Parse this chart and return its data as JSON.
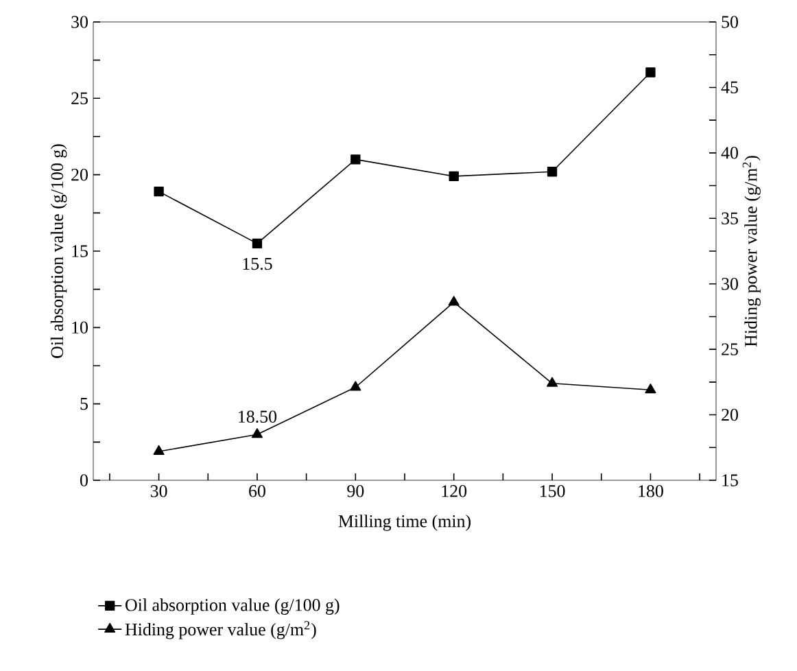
{
  "chart_data": {
    "type": "line",
    "xlabel": "Milling time (min)",
    "ylabel": "Oil absorption value (g/100 g)",
    "y2label": "Hiding power value (g/m$^{2}$)",
    "x": [
      30,
      60,
      90,
      120,
      150,
      180
    ],
    "series": [
      {
        "name": "Oil absorption value (g/100 g)",
        "color": "#000000",
        "marker": "square",
        "values": [
          18.9,
          15.5,
          21.0,
          19.9,
          20.2,
          26.7
        ],
        "value_labels": [
          null,
          "15.5",
          null,
          null,
          null,
          null
        ]
      },
      {
        "name": "Hiding power value (g/m$^{2}$)",
        "color": "#000000",
        "marker": "triangle",
        "axis": "y2",
        "values": [
          17.2,
          18.5,
          22.1,
          28.6,
          22.4,
          21.9
        ],
        "value_labels": [
          null,
          "18.50",
          null,
          null,
          null,
          null
        ]
      }
    ],
    "xlim": [
      10,
      200
    ],
    "xticks": [
      {
        "value": 15,
        "label": null
      },
      30,
      {
        "value": 45,
        "label": null
      },
      60,
      {
        "value": 75,
        "label": null
      },
      90,
      {
        "value": 105,
        "label": null
      },
      120,
      {
        "value": 135,
        "label": null
      },
      150,
      {
        "value": 165,
        "label": null
      },
      180,
      {
        "value": 195,
        "label": null
      }
    ],
    "ylim": [
      0,
      30
    ],
    "yticks": [
      0,
      {
        "value": 2.5,
        "label": null
      },
      5,
      {
        "value": 7.5,
        "label": null
      },
      10,
      {
        "value": 12.5,
        "label": null
      },
      15,
      {
        "value": 17.5,
        "label": null
      },
      20,
      {
        "value": 22.5,
        "label": null
      },
      25,
      {
        "value": 27.5,
        "label": null
      },
      30
    ],
    "y2lim": [
      15,
      50
    ],
    "y2ticks": [
      15,
      {
        "value": 17.5,
        "label": null
      },
      20,
      {
        "value": 22.5,
        "label": null
      },
      25,
      {
        "value": 27.5,
        "label": null
      },
      30,
      {
        "value": 32.5,
        "label": null
      },
      35,
      {
        "value": 37.5,
        "label": null
      },
      40,
      {
        "value": 42.5,
        "label": null
      },
      45,
      {
        "value": 47.5,
        "label": null
      },
      50
    ],
    "grid": false,
    "legend": "bottom",
    "line_style": "solid"
  }
}
